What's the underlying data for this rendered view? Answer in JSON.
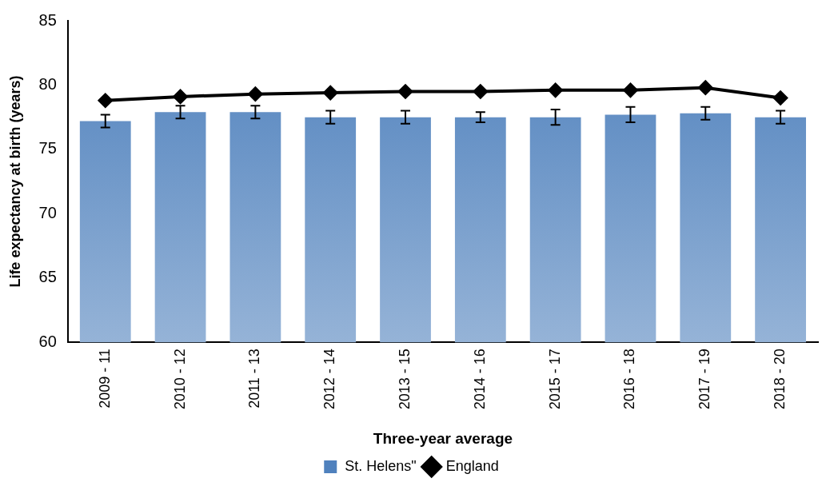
{
  "chart_data": {
    "type": "bar",
    "xlabel": "Three-year average",
    "ylabel": "Life expectancy at birth (years)",
    "categories": [
      "2009 - 11",
      "2010 - 12",
      "2011 - 13",
      "2012 - 14",
      "2013 - 15",
      "2014 - 16",
      "2015 - 17",
      "2016 - 18",
      "2017 - 19",
      "2018 - 20"
    ],
    "series": [
      {
        "name": "St. Helens\"",
        "color": "#4f81bd",
        "values": [
          77.2,
          77.9,
          77.9,
          77.5,
          77.5,
          77.5,
          77.5,
          77.7,
          77.8,
          77.5
        ],
        "errors": [
          0.5,
          0.5,
          0.5,
          0.5,
          0.5,
          0.4,
          0.6,
          0.6,
          0.5,
          0.5
        ]
      },
      {
        "name": "England",
        "type": "line",
        "color": "#000000",
        "values": [
          78.8,
          79.1,
          79.3,
          79.4,
          79.5,
          79.5,
          79.6,
          79.6,
          79.8,
          79.0
        ]
      }
    ],
    "ylim": [
      60,
      85
    ],
    "yticks": [
      60,
      65,
      70,
      75,
      80,
      85
    ],
    "grid": false,
    "legend": "bottom",
    "marker": "diamond",
    "line_style": "solid"
  }
}
